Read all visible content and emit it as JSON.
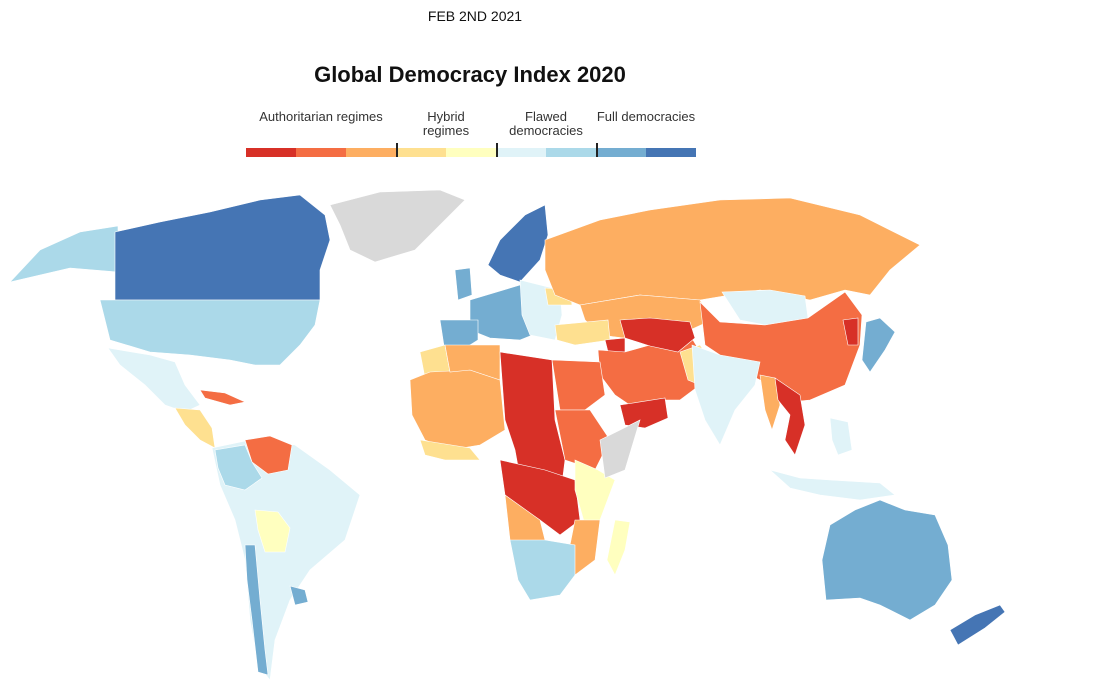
{
  "date": "FEB 2ND 2021",
  "title": "Global Democracy Index 2020",
  "legend": {
    "categories": [
      {
        "label": "Authoritarian regimes"
      },
      {
        "label": "Hybrid regimes"
      },
      {
        "label": "Flawed democracies"
      },
      {
        "label": "Full democracies"
      }
    ],
    "colors": [
      "#d73027",
      "#f46d43",
      "#fdae61",
      "#fee090",
      "#ffffbf",
      "#e0f3f8",
      "#abd9e9",
      "#74add1",
      "#4575b4"
    ],
    "no_data_color": "#d9d9d9"
  },
  "region_categories": {
    "alaska": 6,
    "canada": 8,
    "greenland": -1,
    "usa": 6,
    "mexico": 5,
    "central_america": 3,
    "cuba": 1,
    "south_america": 5,
    "venezuela": 1,
    "colombia": 6,
    "bolivia": 4,
    "chile": 7,
    "uruguay": 7,
    "scandinavia": 8,
    "western_europe": 7,
    "iberia": 7,
    "uk": 7,
    "eastern_europe": 5,
    "belarus": 3,
    "russia": 2,
    "kazakhstan": 2,
    "mongolia": 5,
    "china": 1,
    "turkey": 3,
    "middle_east": 1,
    "afghanistan": 0,
    "yemen": 0,
    "syria": 0,
    "pakistan": 3,
    "india": 5,
    "myanmar": 2,
    "laos_vietnam": 0,
    "indonesia": 5,
    "philippines": 5,
    "japan": 7,
    "north_korea": 0,
    "north_west_africa": 2,
    "algeria": 2,
    "morocco": 3,
    "sahel_red": 0,
    "egypt": 1,
    "sudan": 1,
    "east_africa": 4,
    "horn": -1,
    "central_africa": 0,
    "angola": 2,
    "southern_africa": 6,
    "mozambique": 2,
    "west_coast": 3,
    "madagascar": 4,
    "australia": 7,
    "new_zealand": 8
  }
}
